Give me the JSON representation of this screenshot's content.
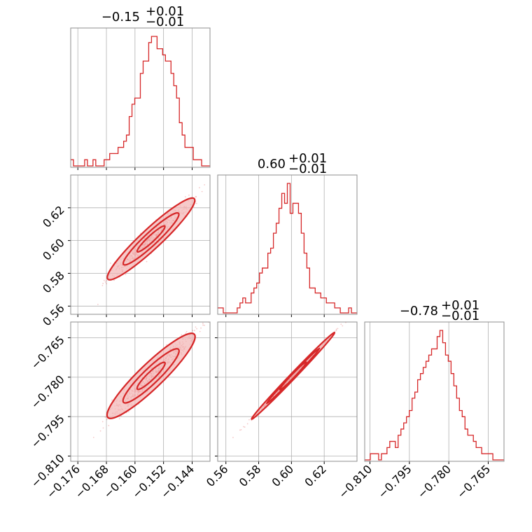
{
  "colors": {
    "accent": "#d62728",
    "fill_light": "#f2b3b3",
    "grid": "#b0b0b0"
  },
  "titles": {
    "p0": {
      "main": "−0.15",
      "sup": "+0.01",
      "sub": "−0.01"
    },
    "p1": {
      "main": "0.60",
      "sup": "+0.01",
      "sub": "−0.01"
    },
    "p2": {
      "main": "−0.78",
      "sup": "+0.01",
      "sub": "−0.01"
    }
  },
  "chart_data": {
    "type": "corner",
    "parameters": [
      {
        "range": [
          -0.178,
          -0.139
        ],
        "ticks": [
          -0.176,
          -0.168,
          -0.16,
          -0.152,
          -0.144
        ],
        "tick_labels": [
          "−0.176",
          "−0.168",
          "−0.160",
          "−0.152",
          "−0.144"
        ]
      },
      {
        "range": [
          0.555,
          0.64
        ],
        "ticks": [
          0.56,
          0.58,
          0.6,
          0.62
        ],
        "tick_labels": [
          "0.56",
          "0.58",
          "0.60",
          "0.62"
        ]
      },
      {
        "range": [
          -0.812,
          -0.759
        ],
        "ticks": [
          -0.81,
          -0.795,
          -0.78,
          -0.765
        ],
        "tick_labels": [
          "−0.810",
          "−0.795",
          "−0.780",
          "−0.765"
        ]
      }
    ],
    "histograms": [
      {
        "param": 0,
        "counts": [
          1,
          0,
          0,
          0,
          0,
          1,
          0,
          0,
          1,
          0,
          0,
          0,
          1,
          1,
          2,
          2,
          2,
          3,
          3,
          4,
          5,
          8,
          10,
          11,
          11,
          15,
          17,
          17,
          20,
          21,
          21,
          19,
          19,
          18,
          17,
          17,
          15,
          13,
          11,
          7,
          5,
          3,
          3,
          3,
          1,
          1,
          1,
          0,
          0,
          0
        ]
      },
      {
        "param": 1,
        "counts": [
          1,
          1,
          0,
          0,
          0,
          0,
          0,
          1,
          2,
          3,
          2,
          2,
          4,
          5,
          6,
          8,
          9,
          9,
          12,
          13,
          16,
          18,
          21,
          24,
          22,
          26,
          20,
          22,
          22,
          20,
          16,
          12,
          9,
          5,
          5,
          4,
          4,
          3,
          3,
          2,
          2,
          2,
          1,
          1,
          0,
          0,
          0,
          1,
          0,
          0
        ]
      },
      {
        "param": 2,
        "counts": [
          0,
          0,
          1,
          1,
          1,
          0,
          1,
          1,
          2,
          3,
          3,
          2,
          4,
          5,
          6,
          7,
          8,
          10,
          11,
          13,
          14,
          15,
          16,
          17,
          18,
          18,
          20,
          21,
          19,
          17,
          16,
          14,
          12,
          10,
          8,
          7,
          5,
          4,
          4,
          3,
          2,
          2,
          1,
          1,
          1,
          1,
          0,
          0,
          0,
          0
        ]
      }
    ],
    "scatter_2d": [
      {
        "x_param": 0,
        "y_param": 1
      },
      {
        "x_param": 0,
        "y_param": 2
      },
      {
        "x_param": 1,
        "y_param": 2
      }
    ],
    "grid": true
  }
}
